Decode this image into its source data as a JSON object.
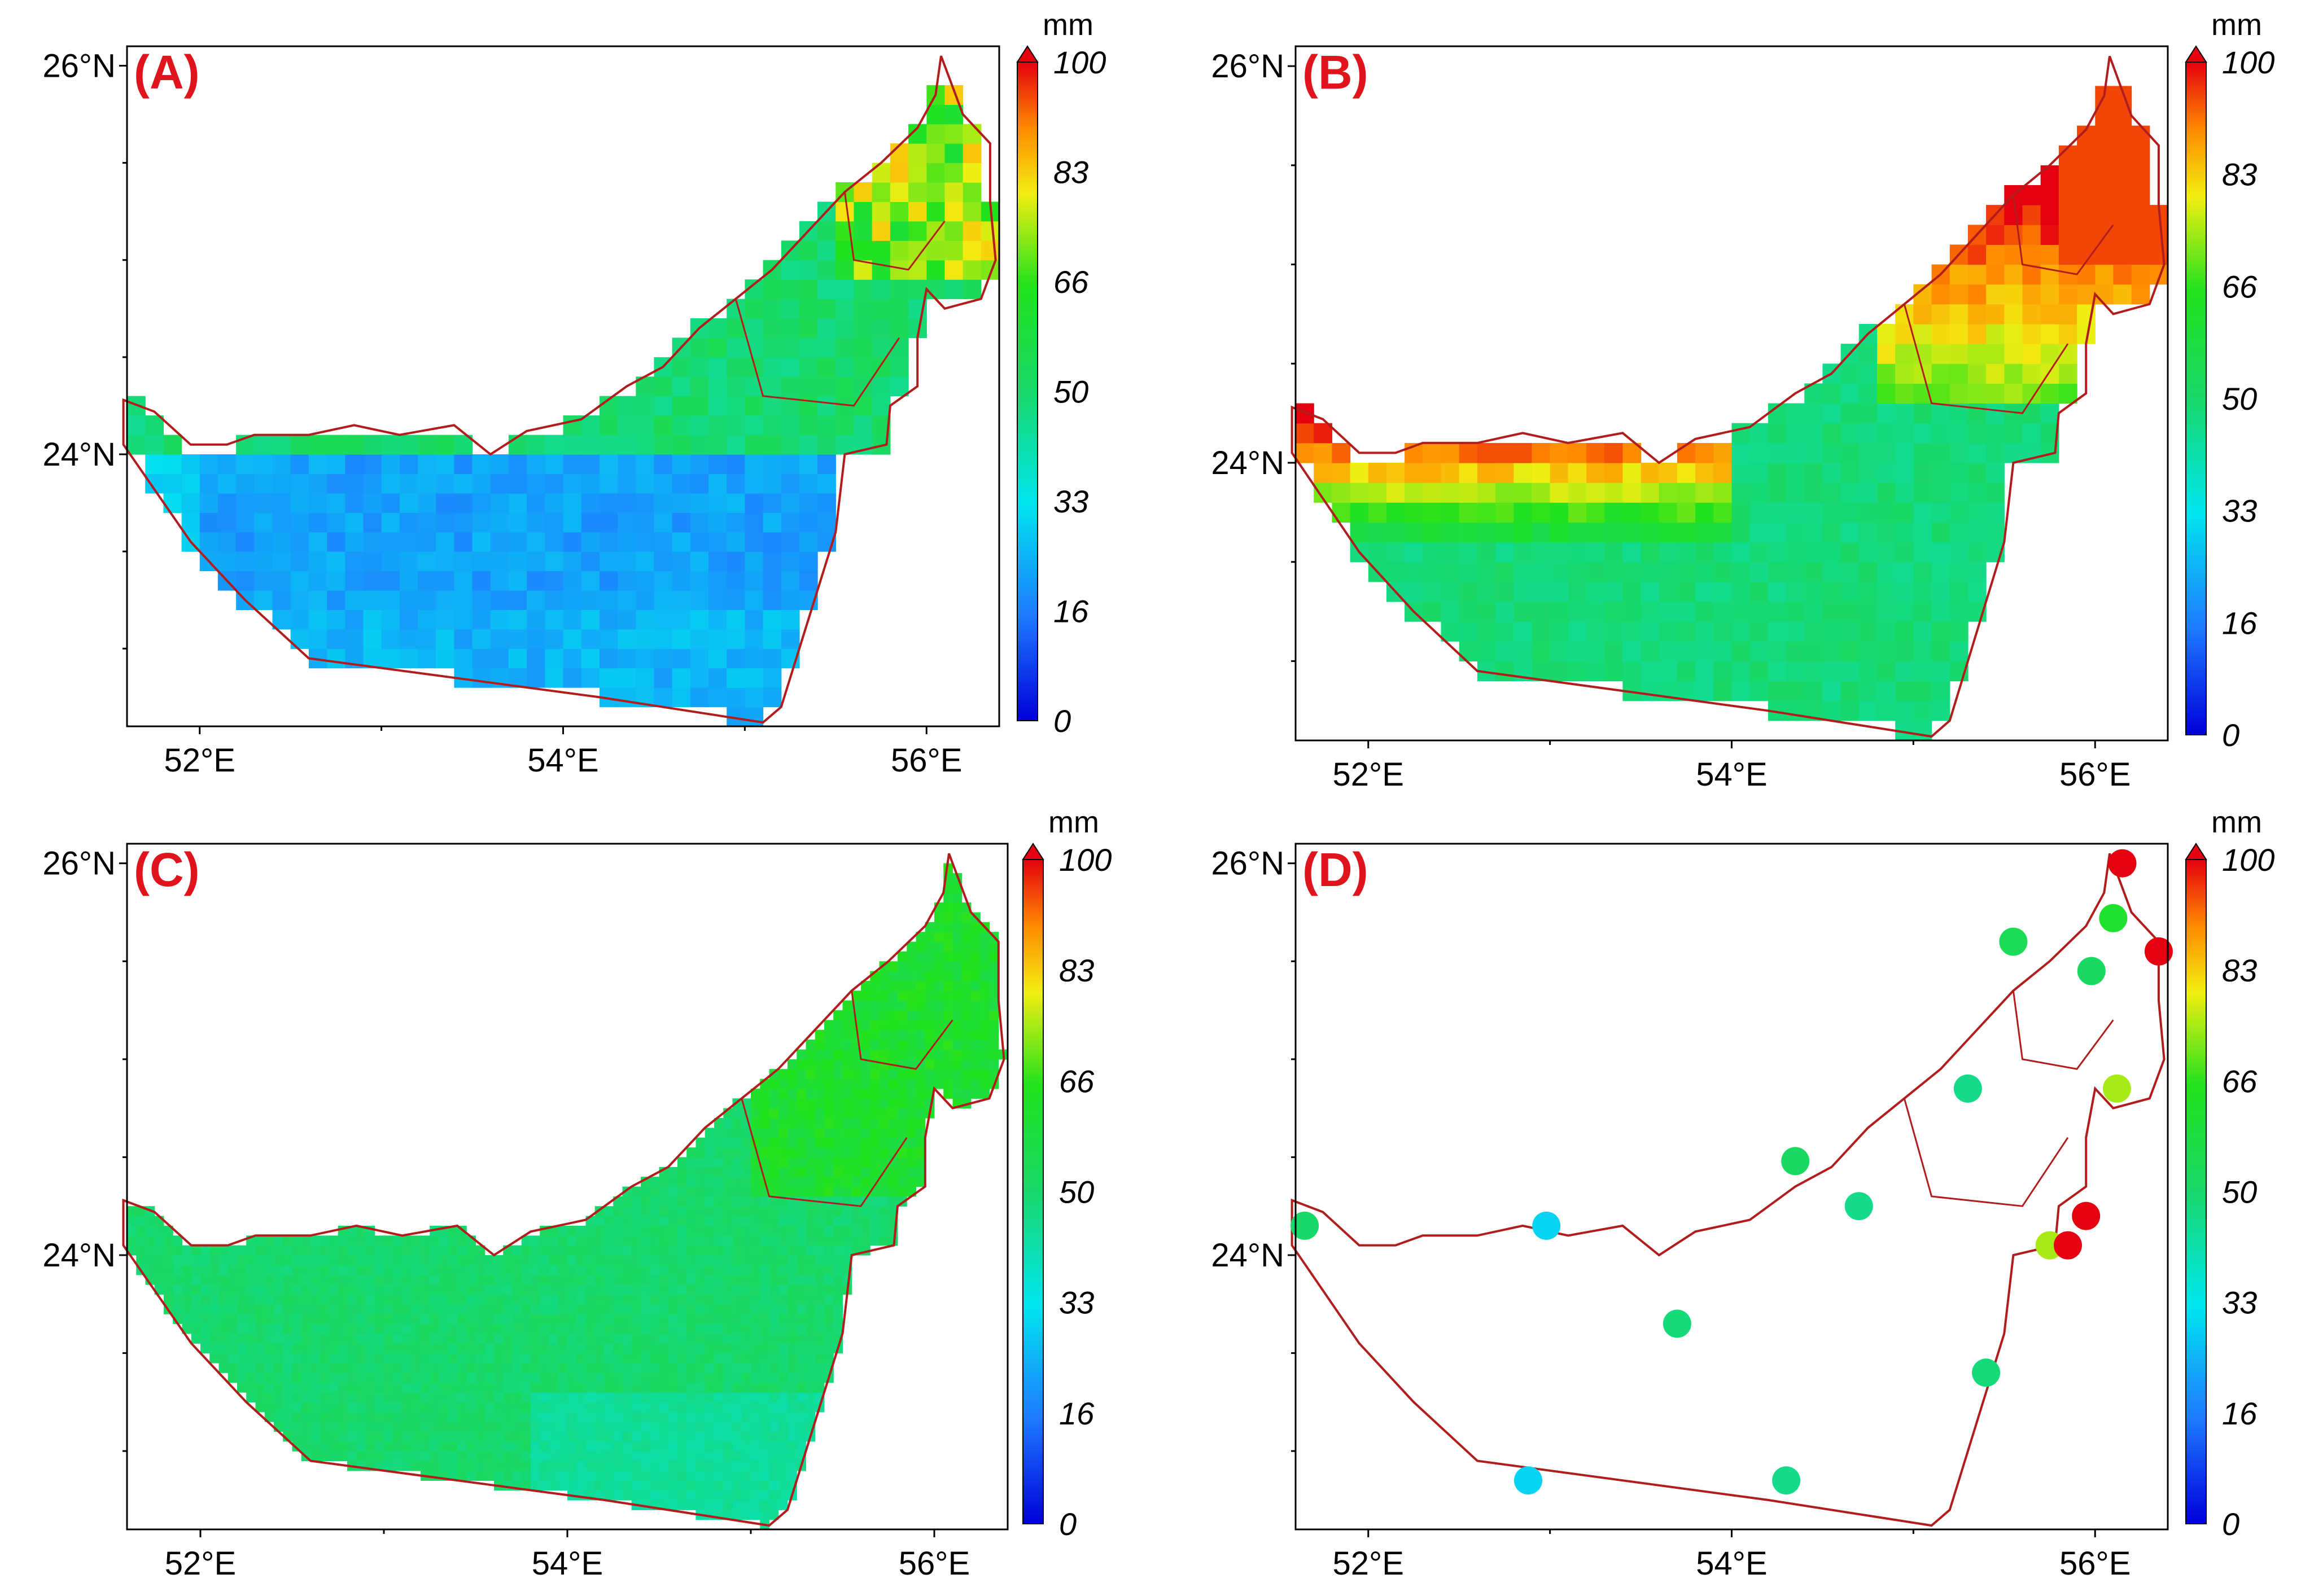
{
  "figure": {
    "type": "map-panels",
    "colorbar": {
      "unit": "mm",
      "ticks": [
        "100",
        "83",
        "66",
        "50",
        "33",
        "16",
        "0"
      ],
      "range": [
        0,
        100
      ]
    },
    "longitude_labels": [
      "52°E",
      "54°E",
      "56°E"
    ],
    "latitude_labels": [
      "26°N",
      "24°N"
    ],
    "lon_range": [
      51.6,
      56.4
    ],
    "lat_range": [
      22.6,
      26.1
    ],
    "border_color": "#b11d1d",
    "label_color": "#e0141c",
    "panels": [
      {
        "label": "(A)",
        "field": "low-southwest",
        "description_values": "desert interior ~15-30 mm; coastal belt ~45-60 mm; northeastern mountains ~80-100 mm"
      },
      {
        "label": "(B)",
        "field": "high-west-high-northeast",
        "description_values": "western coast ~90-100 mm; interior ~40-55 mm; northeast ~75-100 mm"
      },
      {
        "label": "(C)",
        "field": "uniform-green",
        "description_values": "most of country ~45-55 mm; east ~60-70 mm"
      },
      {
        "label": "(D)",
        "field": "stations",
        "stations": [
          {
            "lon": 51.65,
            "lat": 24.15,
            "value": 50
          },
          {
            "lon": 52.98,
            "lat": 24.15,
            "value": 30
          },
          {
            "lon": 54.35,
            "lat": 24.48,
            "value": 52
          },
          {
            "lon": 54.7,
            "lat": 24.25,
            "value": 46
          },
          {
            "lon": 55.3,
            "lat": 24.85,
            "value": 46
          },
          {
            "lon": 55.55,
            "lat": 25.6,
            "value": 54
          },
          {
            "lon": 56.1,
            "lat": 25.72,
            "value": 62
          },
          {
            "lon": 56.15,
            "lat": 26.0,
            "value": 100
          },
          {
            "lon": 55.98,
            "lat": 25.45,
            "value": 52
          },
          {
            "lon": 56.35,
            "lat": 25.55,
            "value": 100
          },
          {
            "lon": 56.12,
            "lat": 24.85,
            "value": 75
          },
          {
            "lon": 55.95,
            "lat": 24.2,
            "value": 100
          },
          {
            "lon": 55.75,
            "lat": 24.05,
            "value": 75
          },
          {
            "lon": 55.85,
            "lat": 24.05,
            "value": 100
          },
          {
            "lon": 53.7,
            "lat": 23.65,
            "value": 48
          },
          {
            "lon": 55.4,
            "lat": 23.4,
            "value": 48
          },
          {
            "lon": 52.88,
            "lat": 22.85,
            "value": 30
          },
          {
            "lon": 54.3,
            "lat": 22.85,
            "value": 46
          }
        ]
      }
    ]
  }
}
